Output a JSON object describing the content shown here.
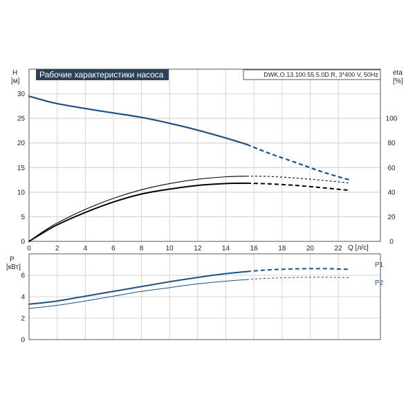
{
  "chart_data": {
    "type": "line",
    "title": "Рабочие характеристики насоса",
    "model": "DWK.O.13.100.55.5.0D.R, 3*400 V, 50Hz",
    "x_axis": {
      "label": "Q [л/с]",
      "ticks": [
        0,
        2,
        4,
        6,
        8,
        10,
        12,
        14,
        16,
        18,
        20,
        22
      ],
      "range": [
        0,
        25
      ]
    },
    "panels": [
      {
        "name": "head-efficiency",
        "left_axis": {
          "label": "H",
          "unit": "[м]",
          "ticks": [
            0,
            5,
            10,
            15,
            20,
            25,
            30
          ],
          "range": [
            0,
            35
          ]
        },
        "right_axis": {
          "label": "eta",
          "unit": "[%]",
          "ticks": [
            0,
            20,
            40,
            60,
            80,
            100
          ],
          "range": [
            0,
            140
          ]
        },
        "series": [
          {
            "axis": "left",
            "color": "#1c4f84",
            "width": 2.2,
            "dash_from": 15.5,
            "x": [
              0,
              1,
              2,
              4,
              6,
              8,
              10,
              12,
              14,
              15.5,
              17,
              19,
              21,
              22.8
            ],
            "y": [
              29.5,
              28.7,
              28,
              27,
              26.1,
              25.2,
              24,
              22.6,
              21,
              19.7,
              18,
              16,
              14,
              12.5
            ]
          },
          {
            "axis": "right",
            "color": "#000000",
            "width": 1.1,
            "dash_from": 15.5,
            "x": [
              0,
              1,
              2,
              4,
              6,
              8,
              10,
              12,
              14,
              15.5,
              17,
              19,
              21,
              22.8
            ],
            "y": [
              0,
              8,
              15,
              26,
              35,
              42,
              47,
              50.5,
              52.5,
              53,
              52.8,
              51.5,
              49.5,
              47.5
            ]
          },
          {
            "axis": "right",
            "color": "#000000",
            "width": 2,
            "dash_from": 15.5,
            "x": [
              0,
              1,
              2,
              4,
              6,
              8,
              10,
              12,
              14,
              15.5,
              17,
              19,
              21,
              22.8
            ],
            "y": [
              0,
              7,
              13.5,
              23.5,
              32,
              38.5,
              42.5,
              45.5,
              47,
              47.3,
              46.8,
              45.5,
              43.5,
              41.5
            ]
          }
        ]
      },
      {
        "name": "power",
        "left_axis": {
          "label": "P",
          "unit": "[кВт]",
          "ticks": [
            0,
            2,
            4,
            6
          ],
          "range": [
            0,
            8
          ]
        },
        "series": [
          {
            "name": "P1",
            "color": "#1c4f84",
            "width": 2,
            "dash_from": 15.5,
            "x": [
              0,
              2,
              4,
              6,
              8,
              10,
              12,
              14,
              15.5,
              17,
              19,
              21,
              22.8
            ],
            "y": [
              3.3,
              3.6,
              4.05,
              4.5,
              4.95,
              5.4,
              5.8,
              6.15,
              6.35,
              6.5,
              6.6,
              6.62,
              6.55
            ]
          },
          {
            "name": "P2",
            "color": "#1c4f84",
            "width": 1,
            "dash_from": 15.5,
            "x": [
              0,
              2,
              4,
              6,
              8,
              10,
              12,
              14,
              15.5,
              17,
              19,
              21,
              22.8
            ],
            "y": [
              2.9,
              3.2,
              3.6,
              4.05,
              4.5,
              4.85,
              5.2,
              5.45,
              5.6,
              5.72,
              5.8,
              5.82,
              5.78
            ]
          }
        ]
      }
    ]
  }
}
